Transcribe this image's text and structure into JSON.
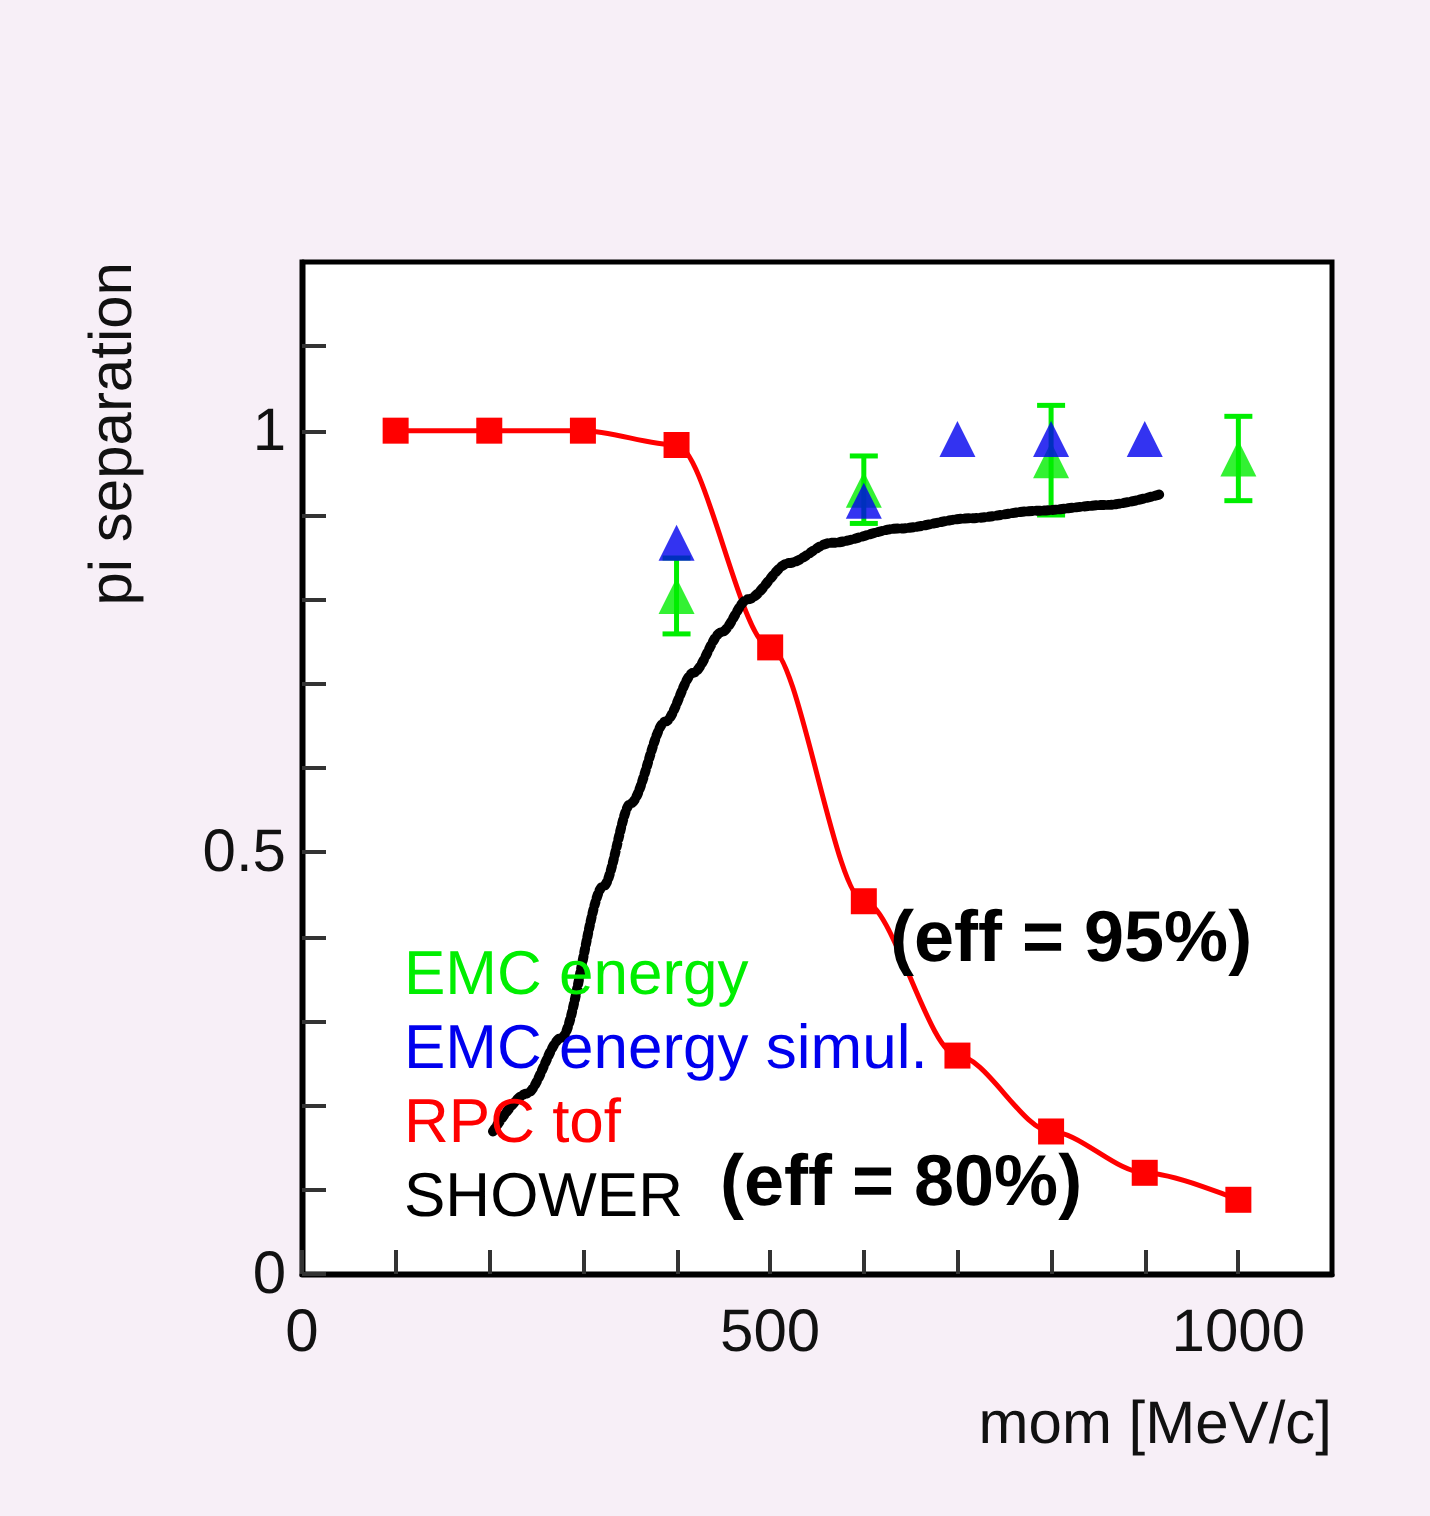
{
  "chart_data": {
    "type": "scatter",
    "xlabel": "mom [MeV/c]",
    "ylabel": "pi separation",
    "xlim": [
      0,
      1100
    ],
    "xticks": [
      0,
      {
        "value": 100,
        "label": null
      },
      {
        "value": 200,
        "label": null
      },
      {
        "value": 300,
        "label": null
      },
      {
        "value": 400,
        "label": null
      },
      500,
      {
        "value": 600,
        "label": null
      },
      {
        "value": 700,
        "label": null
      },
      {
        "value": 800,
        "label": null
      },
      {
        "value": 900,
        "label": null
      },
      1000
    ],
    "ylim": [
      0,
      1.2
    ],
    "yticks": [
      0,
      {
        "value": 0.1,
        "label": null
      },
      {
        "value": 0.2,
        "label": null
      },
      {
        "value": 0.3,
        "label": null
      },
      {
        "value": 0.4,
        "label": null
      },
      0.5,
      {
        "value": 0.6,
        "label": null
      },
      {
        "value": 0.7,
        "label": null
      },
      {
        "value": 0.8,
        "label": null
      },
      {
        "value": 0.9,
        "label": null
      },
      1,
      {
        "value": 1.1,
        "label": null
      }
    ],
    "grid": false,
    "marker": "triangle",
    "legend": "bottom left",
    "series": [
      {
        "name": "EMC energy",
        "color": "#00ee00",
        "x": [
          400,
          600,
          800,
          1000
        ],
        "values": [
          0.804,
          0.93,
          0.965,
          0.967
        ],
        "errors": [
          0.045,
          0.04,
          0.065,
          0.05
        ]
      },
      {
        "name": "EMC energy simul.",
        "color": "#0000ee",
        "x": [
          400,
          600,
          700,
          800,
          900
        ],
        "values": [
          0.867,
          0.917,
          0.99,
          0.99,
          0.99
        ]
      },
      {
        "name": "RPC tof",
        "type": "line",
        "marker": "square",
        "line_style": "solid",
        "color": "#ff0000",
        "x": [
          100,
          200,
          300,
          400,
          500,
          600,
          700,
          800,
          900,
          1000
        ],
        "values": [
          1,
          1,
          1,
          0.983,
          0.743,
          0.442,
          0.259,
          0.169,
          0.12,
          0.088
        ]
      },
      {
        "name": "SHOWER",
        "type": "line",
        "marker": "none",
        "line_style": "dotted",
        "color": "#000000",
        "x": [
          204,
          240,
          277,
          322,
          351,
          388,
          418,
          448,
          476,
          520,
          565,
          638,
          712,
          785,
          860,
          918
        ],
        "values": [
          0.169,
          0.214,
          0.28,
          0.46,
          0.558,
          0.655,
          0.713,
          0.761,
          0.8,
          0.843,
          0.867,
          0.884,
          0.896,
          0.905,
          0.912,
          0.925
        ]
      }
    ],
    "annotations": [
      "(eff = 95%)",
      "(eff = 80%)"
    ]
  }
}
